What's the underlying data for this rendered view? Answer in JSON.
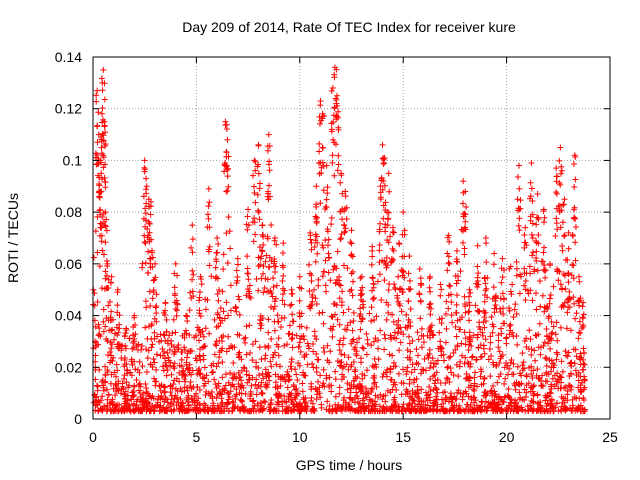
{
  "chart_data": {
    "type": "scatter",
    "title": "Day 209 of 2014, Rate Of TEC Index for receiver kure",
    "xlabel": "GPS time / hours",
    "ylabel": "ROTI / TECUs",
    "xlim": [
      0,
      25
    ],
    "ylim": [
      0,
      0.14
    ],
    "xticks": [
      0,
      5,
      10,
      15,
      20,
      25
    ],
    "xtick_labels": [
      "0",
      "5",
      "10",
      "15",
      "20",
      "25"
    ],
    "yticks": [
      0,
      0.02,
      0.04,
      0.06,
      0.08,
      0.1,
      0.12,
      0.14
    ],
    "ytick_labels": [
      "0",
      "0.02",
      "0.04",
      "0.06",
      "0.08",
      "0.1",
      "0.12",
      "0.14"
    ],
    "grid": true,
    "marker": "+",
    "marker_color": "#ff0000",
    "series": [
      {
        "x": [
          0.02,
          0.1,
          0.2,
          0.28,
          0.35,
          0.4,
          0.45,
          0.5,
          0.55,
          0.6,
          0.7,
          0.9,
          1.2,
          1.6,
          2.0,
          2.5,
          2.6,
          2.7,
          2.8,
          3.0,
          3.5,
          4.0,
          4.5,
          4.8,
          5.2,
          5.6,
          6.0,
          6.4,
          6.5,
          7.0,
          7.5,
          7.8,
          8.0,
          8.2,
          8.5,
          8.8,
          9.2,
          9.6,
          10.0,
          10.5,
          10.8,
          11.0,
          11.1,
          11.3,
          11.6,
          11.7,
          11.8,
          12.0,
          12.2,
          12.5,
          13.0,
          13.5,
          13.9,
          14.0,
          14.1,
          14.3,
          14.5,
          14.8,
          15.0,
          15.3,
          15.8,
          16.3,
          16.8,
          17.2,
          17.6,
          17.9,
          18.0,
          18.2,
          18.6,
          19.0,
          19.4,
          19.8,
          20.2,
          20.6,
          20.9,
          21.2,
          21.5,
          21.8,
          22.1,
          22.4,
          22.6,
          22.8,
          23.0,
          23.3,
          23.5,
          23.7
        ],
        "y": [
          0.05,
          0.03,
          0.127,
          0.11,
          0.1,
          0.095,
          0.13,
          0.135,
          0.115,
          0.08,
          0.06,
          0.055,
          0.05,
          0.035,
          0.04,
          0.1,
          0.09,
          0.085,
          0.084,
          0.06,
          0.045,
          0.06,
          0.04,
          0.075,
          0.055,
          0.089,
          0.07,
          0.115,
          0.108,
          0.062,
          0.081,
          0.1,
          0.106,
          0.075,
          0.11,
          0.07,
          0.068,
          0.05,
          0.055,
          0.072,
          0.09,
          0.123,
          0.118,
          0.098,
          0.128,
          0.136,
          0.125,
          0.095,
          0.088,
          0.073,
          0.055,
          0.065,
          0.09,
          0.106,
          0.101,
          0.095,
          0.074,
          0.068,
          0.08,
          0.063,
          0.058,
          0.055,
          0.052,
          0.071,
          0.065,
          0.092,
          0.088,
          0.05,
          0.067,
          0.07,
          0.064,
          0.062,
          0.059,
          0.098,
          0.074,
          0.099,
          0.087,
          0.081,
          0.06,
          0.097,
          0.105,
          0.085,
          0.072,
          0.102,
          0.055,
          0.045
        ]
      }
    ]
  }
}
